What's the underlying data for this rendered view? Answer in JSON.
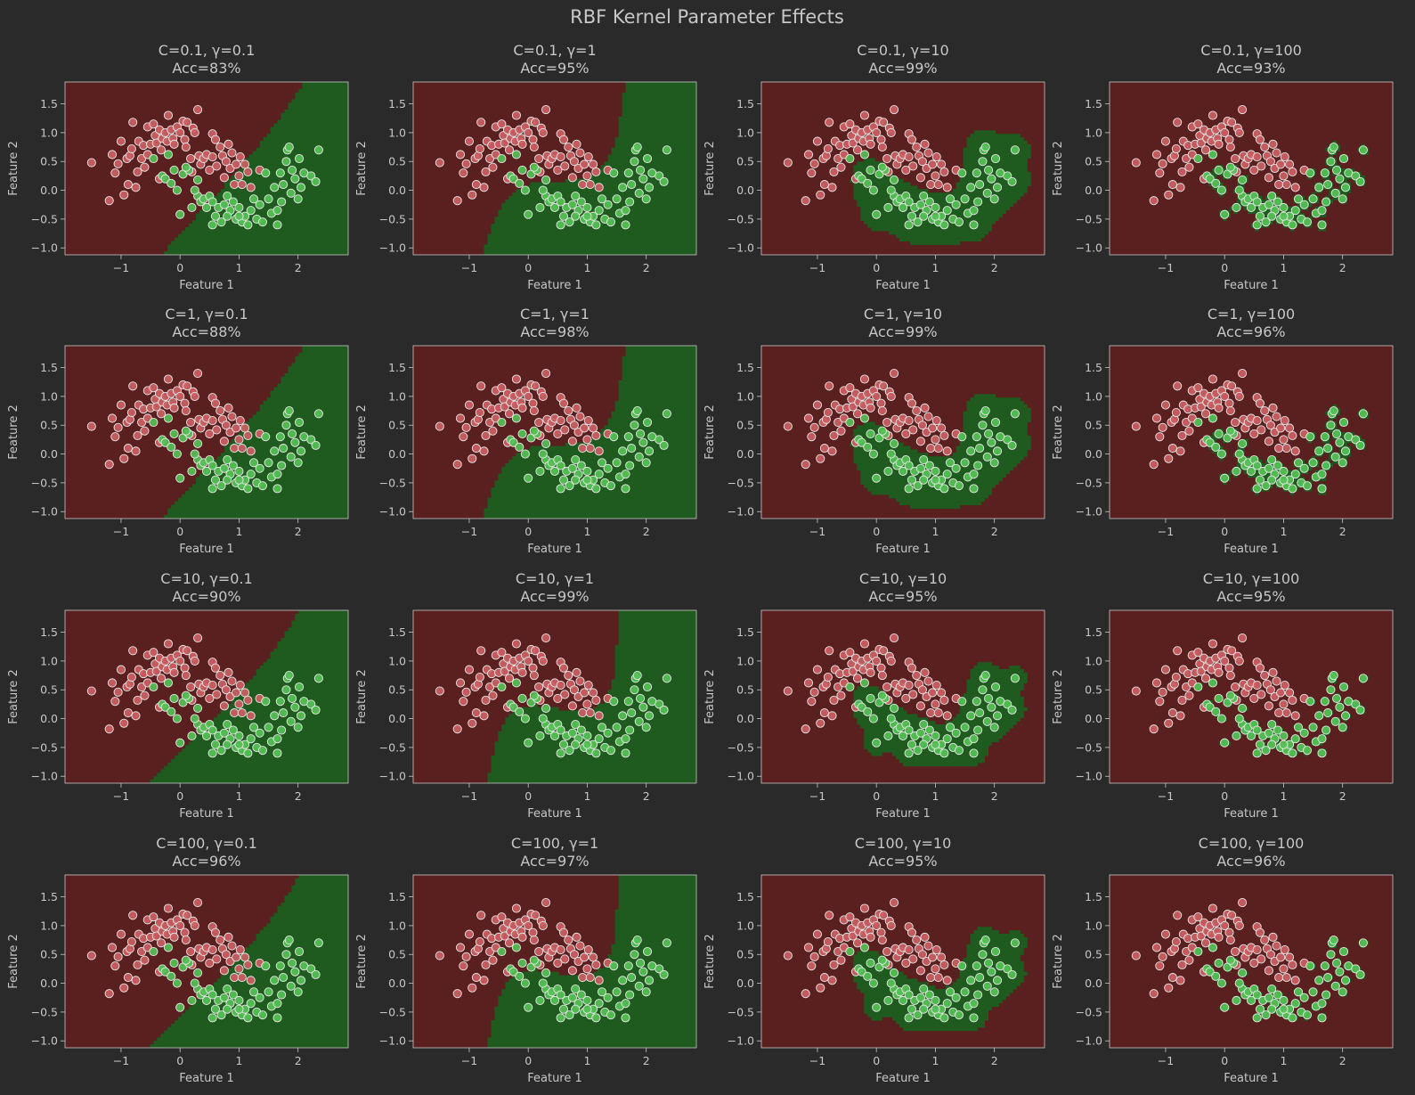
{
  "title": "RBF Kernel Parameter Effects",
  "colors": {
    "background": "#2a2a2a",
    "class0_region": "#5a1f1f",
    "class1_region": "#1f5a1f",
    "class0_point": "#cc5f63",
    "class1_point": "#55c155",
    "axis": "#c7c7c7"
  },
  "chart_data": {
    "type": "scatter",
    "grid": false,
    "legend": "none",
    "xlabel": "Feature 1",
    "ylabel": "Feature 2",
    "xlim": [
      -1.95,
      2.85
    ],
    "ylim": [
      -1.12,
      1.88
    ],
    "xticks": [
      -1,
      0,
      1,
      2
    ],
    "yticks": [
      -1.0,
      -0.5,
      0.0,
      0.5,
      1.0,
      1.5
    ],
    "panels": [
      {
        "row": 0,
        "col": 0,
        "title": "C=0.1, γ=0.1",
        "accuracy": "Acc=83%"
      },
      {
        "row": 0,
        "col": 1,
        "title": "C=0.1, γ=1",
        "accuracy": "Acc=95%"
      },
      {
        "row": 0,
        "col": 2,
        "title": "C=0.1, γ=10",
        "accuracy": "Acc=99%"
      },
      {
        "row": 0,
        "col": 3,
        "title": "C=0.1, γ=100",
        "accuracy": "Acc=93%"
      },
      {
        "row": 1,
        "col": 0,
        "title": "C=1, γ=0.1",
        "accuracy": "Acc=88%"
      },
      {
        "row": 1,
        "col": 1,
        "title": "C=1, γ=1",
        "accuracy": "Acc=98%"
      },
      {
        "row": 1,
        "col": 2,
        "title": "C=1, γ=10",
        "accuracy": "Acc=99%"
      },
      {
        "row": 1,
        "col": 3,
        "title": "C=1, γ=100",
        "accuracy": "Acc=96%"
      },
      {
        "row": 2,
        "col": 0,
        "title": "C=10, γ=0.1",
        "accuracy": "Acc=90%"
      },
      {
        "row": 2,
        "col": 1,
        "title": "C=10, γ=1",
        "accuracy": "Acc=99%"
      },
      {
        "row": 2,
        "col": 2,
        "title": "C=10, γ=10",
        "accuracy": "Acc=95%"
      },
      {
        "row": 2,
        "col": 3,
        "title": "C=10, γ=100",
        "accuracy": "Acc=95%"
      },
      {
        "row": 3,
        "col": 0,
        "title": "C=100, γ=0.1",
        "accuracy": "Acc=96%"
      },
      {
        "row": 3,
        "col": 1,
        "title": "C=100, γ=1",
        "accuracy": "Acc=97%"
      },
      {
        "row": 3,
        "col": 2,
        "title": "C=100, γ=10",
        "accuracy": "Acc=95%"
      },
      {
        "row": 3,
        "col": 3,
        "title": "C=100, γ=100",
        "accuracy": "Acc=96%"
      }
    ],
    "series": [
      {
        "points": [
          [
            -1.5,
            0.48
          ],
          [
            -1.2,
            -0.18
          ],
          [
            -1.15,
            0.62
          ],
          [
            -1.1,
            0.3
          ],
          [
            -1.05,
            0.46
          ],
          [
            -1.0,
            0.85
          ],
          [
            -0.95,
            -0.08
          ],
          [
            -0.9,
            0.55
          ],
          [
            -0.88,
            0.1
          ],
          [
            -0.85,
            0.6
          ],
          [
            -0.82,
            0.72
          ],
          [
            -0.8,
            1.18
          ],
          [
            -0.75,
            0.05
          ],
          [
            -0.72,
            0.32
          ],
          [
            -0.7,
            0.85
          ],
          [
            -0.65,
            0.55
          ],
          [
            -0.62,
            0.78
          ],
          [
            -0.6,
            0.4
          ],
          [
            -0.55,
            1.1
          ],
          [
            -0.55,
            0.62
          ],
          [
            -0.5,
            0.8
          ],
          [
            -0.45,
            1.15
          ],
          [
            -0.42,
            0.95
          ],
          [
            -0.4,
            0.82
          ],
          [
            -0.35,
            1.05
          ],
          [
            -0.32,
            0.7
          ],
          [
            -0.3,
            0.9
          ],
          [
            -0.25,
            1.0
          ],
          [
            -0.22,
            0.85
          ],
          [
            -0.2,
            1.3
          ],
          [
            -0.15,
            1.05
          ],
          [
            -0.12,
            0.9
          ],
          [
            -0.1,
            0.8
          ],
          [
            -0.05,
            1.1
          ],
          [
            0.0,
            1.0
          ],
          [
            0.05,
            1.2
          ],
          [
            0.08,
            0.88
          ],
          [
            0.1,
            0.75
          ],
          [
            0.12,
            1.18
          ],
          [
            0.18,
            0.55
          ],
          [
            0.22,
            1.08
          ],
          [
            0.25,
            1.0
          ],
          [
            0.3,
            1.4
          ],
          [
            0.32,
            0.6
          ],
          [
            0.35,
            0.45
          ],
          [
            0.4,
            0.55
          ],
          [
            0.45,
            0.62
          ],
          [
            0.5,
            0.35
          ],
          [
            0.55,
            0.58
          ],
          [
            0.55,
            0.98
          ],
          [
            0.6,
            0.88
          ],
          [
            0.62,
            0.42
          ],
          [
            0.68,
            0.75
          ],
          [
            0.72,
            0.6
          ],
          [
            0.75,
            0.22
          ],
          [
            0.78,
            0.5
          ],
          [
            0.82,
            0.8
          ],
          [
            0.85,
            0.38
          ],
          [
            0.88,
            0.65
          ],
          [
            0.92,
            0.1
          ],
          [
            0.95,
            0.45
          ],
          [
            1.0,
            0.25
          ],
          [
            1.02,
            0.58
          ],
          [
            1.05,
            0.1
          ],
          [
            1.1,
            0.45
          ],
          [
            1.15,
            0.32
          ],
          [
            1.2,
            0.05
          ],
          [
            1.35,
            0.35
          ],
          [
            0.2,
            0.32
          ],
          [
            -0.35,
            0.2
          ]
        ]
      },
      {
        "points": [
          [
            -0.45,
            0.55
          ],
          [
            -0.3,
            0.25
          ],
          [
            -0.25,
            0.2
          ],
          [
            -0.2,
            0.62
          ],
          [
            -0.15,
            0.12
          ],
          [
            -0.05,
            0.0
          ],
          [
            0.05,
            0.28
          ],
          [
            0.15,
            0.35
          ],
          [
            0.1,
            0.4
          ],
          [
            0.3,
            0.18
          ],
          [
            0.3,
            -0.1
          ],
          [
            0.35,
            -0.2
          ],
          [
            0.4,
            -0.15
          ],
          [
            0.45,
            -0.3
          ],
          [
            0.5,
            -0.1
          ],
          [
            0.55,
            -0.2
          ],
          [
            0.6,
            -0.45
          ],
          [
            0.65,
            -0.3
          ],
          [
            0.7,
            -0.55
          ],
          [
            0.75,
            -0.25
          ],
          [
            0.8,
            -0.1
          ],
          [
            0.85,
            -0.35
          ],
          [
            0.9,
            -0.2
          ],
          [
            0.95,
            -0.5
          ],
          [
            1.0,
            -0.3
          ],
          [
            1.05,
            -0.55
          ],
          [
            1.1,
            -0.45
          ],
          [
            1.15,
            -0.6
          ],
          [
            1.2,
            -0.35
          ],
          [
            1.25,
            -0.15
          ],
          [
            1.3,
            -0.5
          ],
          [
            1.35,
            -0.25
          ],
          [
            1.45,
            0.3
          ],
          [
            1.5,
            -0.15
          ],
          [
            1.55,
            -0.4
          ],
          [
            1.6,
            0.05
          ],
          [
            1.65,
            -0.35
          ],
          [
            1.7,
            0.3
          ],
          [
            1.72,
            -0.2
          ],
          [
            1.75,
            0.1
          ],
          [
            1.8,
            0.5
          ],
          [
            1.82,
            0.7
          ],
          [
            1.85,
            0.75
          ],
          [
            1.88,
            -0.05
          ],
          [
            1.9,
            0.35
          ],
          [
            1.95,
            0.2
          ],
          [
            2.0,
            -0.15
          ],
          [
            2.02,
            0.55
          ],
          [
            2.05,
            0.05
          ],
          [
            2.1,
            0.3
          ],
          [
            2.22,
            0.25
          ],
          [
            2.3,
            0.15
          ],
          [
            2.35,
            0.7
          ],
          [
            0.0,
            -0.42
          ],
          [
            0.2,
            -0.3
          ],
          [
            0.55,
            -0.6
          ],
          [
            0.8,
            -0.45
          ],
          [
            1.0,
            -0.45
          ],
          [
            1.4,
            -0.55
          ],
          [
            1.65,
            -0.6
          ],
          [
            0.25,
            0.0
          ],
          [
            -0.1,
            0.35
          ]
        ]
      }
    ]
  }
}
